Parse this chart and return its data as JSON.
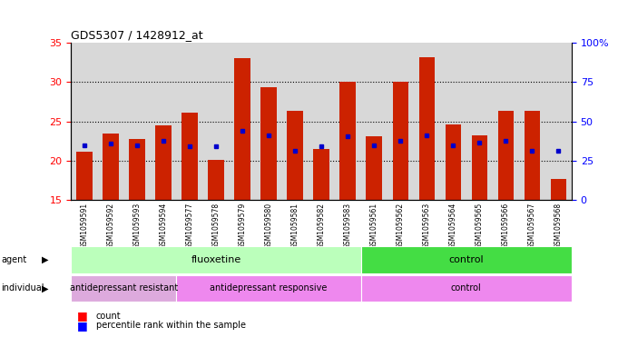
{
  "title": "GDS5307 / 1428912_at",
  "samples": [
    "GSM1059591",
    "GSM1059592",
    "GSM1059593",
    "GSM1059594",
    "GSM1059577",
    "GSM1059578",
    "GSM1059579",
    "GSM1059580",
    "GSM1059581",
    "GSM1059582",
    "GSM1059583",
    "GSM1059561",
    "GSM1059562",
    "GSM1059563",
    "GSM1059564",
    "GSM1059565",
    "GSM1059566",
    "GSM1059567",
    "GSM1059568"
  ],
  "counts": [
    21.1,
    23.4,
    22.8,
    24.5,
    26.1,
    20.1,
    33.1,
    29.4,
    26.3,
    21.5,
    30.0,
    23.1,
    30.0,
    33.2,
    24.6,
    23.2,
    26.3,
    26.4,
    17.7
  ],
  "percentiles": [
    22.0,
    22.2,
    22.0,
    22.5,
    21.8,
    21.8,
    23.8,
    23.2,
    21.2,
    21.8,
    23.1,
    22.0,
    22.5,
    23.2,
    22.0,
    22.3,
    22.5,
    21.2,
    21.2
  ],
  "ymin": 15,
  "ymax": 35,
  "bar_color": "#cc2200",
  "dot_color": "#0000cc",
  "plot_bg": "#d8d8d8",
  "agent_groups": [
    {
      "label": "fluoxetine",
      "start": 0,
      "end": 10,
      "color": "#bbffbb"
    },
    {
      "label": "control",
      "start": 11,
      "end": 18,
      "color": "#44dd44"
    }
  ],
  "individual_groups": [
    {
      "label": "antidepressant resistant",
      "start": 0,
      "end": 3,
      "color": "#ddaadd"
    },
    {
      "label": "antidepressant responsive",
      "start": 4,
      "end": 10,
      "color": "#ee88ee"
    },
    {
      "label": "control",
      "start": 11,
      "end": 18,
      "color": "#ee88ee"
    }
  ],
  "left_yticks": [
    15,
    20,
    25,
    30,
    35
  ],
  "right_tick_positions": [
    15,
    20,
    25,
    30,
    35
  ],
  "right_tick_labels": [
    "0",
    "25",
    "50",
    "75",
    "100%"
  ],
  "grid_lines": [
    20,
    25,
    30
  ]
}
